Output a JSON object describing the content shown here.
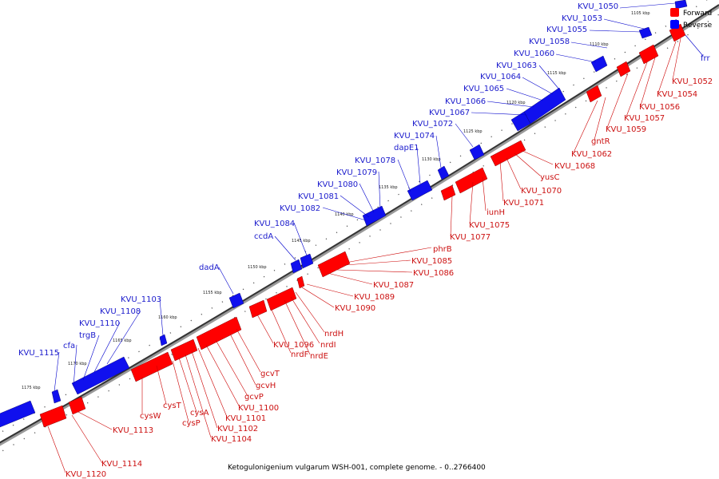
{
  "caption": "Ketogulonigenium vulgarum WSH-001, complete genome. - 0..2766400",
  "legend": [
    {
      "label": "Forward",
      "color": "#ff0000"
    },
    {
      "label": "Reverse",
      "color": "#0000ff"
    }
  ],
  "ticks": [
    "1105 kbp",
    "1110 kbp",
    "1115 kbp",
    "1120 kbp",
    "1125 kbp",
    "1130 kbp",
    "1135 kbp",
    "1140 kbp",
    "1145 kbp",
    "1150 kbp",
    "1155 kbp",
    "1160 kbp",
    "1165 kbp",
    "1170 kbp",
    "1175 kbp"
  ],
  "reverse_genes": [
    "KVU_1050",
    "KVU_1053",
    "KVU_1055",
    "KVU_1058",
    "KVU_1060",
    "KVU_1063",
    "KVU_1064",
    "KVU_1065",
    "KVU_1066",
    "KVU_1067",
    "KVU_1072",
    "KVU_1074",
    "dapE1",
    "KVU_1078",
    "KVU_1079",
    "KVU_1080",
    "KVU_1081",
    "KVU_1082",
    "KVU_1084",
    "ccdA",
    "dadA",
    "KVU_1103",
    "KVU_1108",
    "KVU_1110",
    "trgB",
    "cfa",
    "KVU_1115",
    "frr"
  ],
  "forward_genes": [
    "KVU_1052",
    "KVU_1054",
    "KVU_1056",
    "KVU_1057",
    "KVU_1059",
    "gntR",
    "KVU_1062",
    "KVU_1068",
    "yusC",
    "KVU_1070",
    "KVU_1071",
    "iunH",
    "KVU_1075",
    "KVU_1077",
    "phrB",
    "KVU_1085",
    "KVU_1086",
    "KVU_1087",
    "KVU_1089",
    "KVU_1090",
    "nrdH",
    "nrdI",
    "nrdE",
    "nrdF",
    "KVU_1096",
    "gcvT",
    "gcvH",
    "gcvP",
    "KVU_1100",
    "KVU_1101",
    "KVU_1102",
    "KVU_1104",
    "cysA",
    "cysP",
    "cysT",
    "cysW",
    "KVU_1113",
    "KVU_1114",
    "KVU_1120"
  ]
}
